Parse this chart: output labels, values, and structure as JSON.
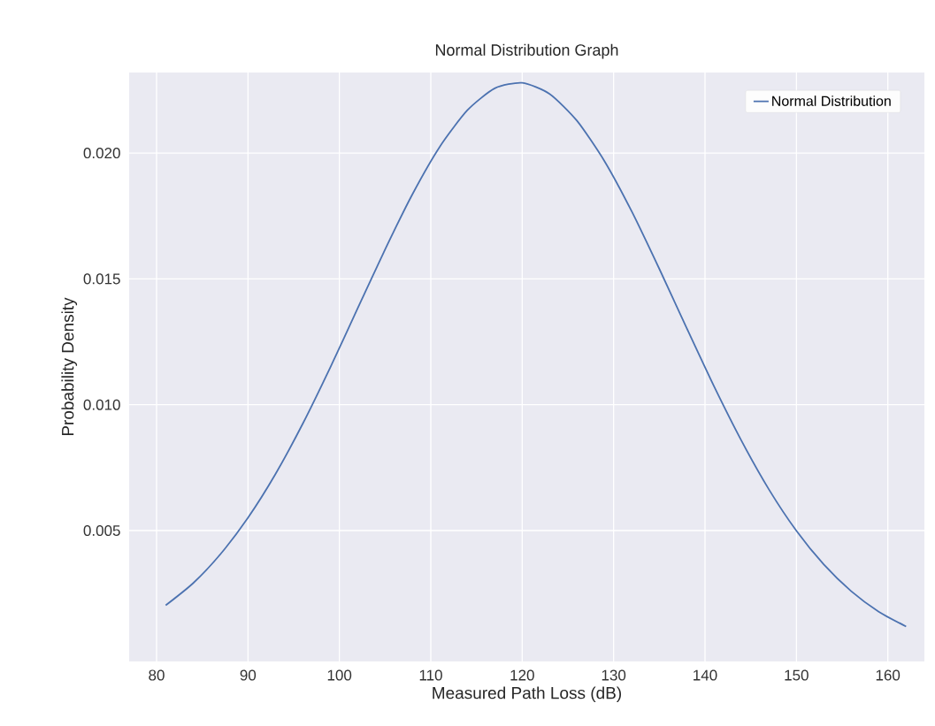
{
  "chart_data": {
    "type": "line",
    "title": "Normal Distribution Graph",
    "xlabel": "Measured Path Loss (dB)",
    "ylabel": "Probability Density",
    "x": [
      81,
      84,
      87,
      90,
      93,
      96,
      99,
      102,
      105,
      108,
      111,
      114,
      117,
      120,
      123,
      126,
      129,
      132,
      135,
      138,
      141,
      144,
      147,
      150,
      153,
      156,
      159,
      162
    ],
    "series": [
      {
        "name": "Normal Distribution",
        "color": "#4c72b0",
        "values": [
          0.00203,
          0.00291,
          0.00407,
          0.00551,
          0.00724,
          0.00925,
          0.01148,
          0.01383,
          0.01617,
          0.01837,
          0.02026,
          0.0217,
          0.02257,
          0.02279,
          0.02235,
          0.02128,
          0.01968,
          0.01767,
          0.0154,
          0.01304,
          0.01072,
          0.00856,
          0.00663,
          0.00499,
          0.00365,
          0.00259,
          0.00178,
          0.00119
        ]
      }
    ],
    "xlim": [
      77,
      164
    ],
    "ylim": [
      -0.0002,
      0.0232
    ],
    "xticks": [
      80,
      90,
      100,
      110,
      120,
      130,
      140,
      150,
      160
    ],
    "yticks": [
      {
        "value": 0.005,
        "label": "0.005"
      },
      {
        "value": 0.01,
        "label": "0.010"
      },
      {
        "value": 0.015,
        "label": "0.015"
      },
      {
        "value": 0.02,
        "label": "0.020"
      }
    ],
    "grid": true,
    "legend": "top right",
    "marker": "none",
    "line_style": "solid"
  }
}
